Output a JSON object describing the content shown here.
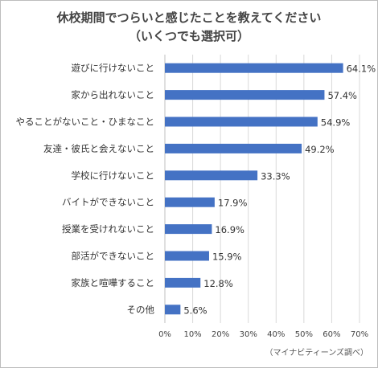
{
  "title": "休校期間でつらいと感じたことを教えてください",
  "subtitle": "（いくつでも選択可）",
  "source": "（マイナビティーンズ調べ）",
  "chart_data": {
    "type": "bar",
    "orientation": "horizontal",
    "categories": [
      "遊びに行けないこと",
      "家から出れないこと",
      "やることがないこと・ひまなこと",
      "友達・彼氏と会えないこと",
      "学校に行けないこと",
      "バイトができないこと",
      "授業を受けれないこと",
      "部活ができないこと",
      "家族と喧嘩すること",
      "その他"
    ],
    "values": [
      64.1,
      57.4,
      54.9,
      49.2,
      33.3,
      17.9,
      16.9,
      15.9,
      12.8,
      5.6
    ],
    "value_labels": [
      "64.1%",
      "57.4%",
      "54.9%",
      "49.2%",
      "33.3%",
      "17.9%",
      "16.9%",
      "15.9%",
      "12.8%",
      "5.6%"
    ],
    "xlim": [
      0,
      70
    ],
    "xticks": [
      0,
      10,
      20,
      30,
      40,
      50,
      60,
      70
    ],
    "xtick_labels": [
      "0%",
      "10%",
      "20%",
      "30%",
      "40%",
      "50%",
      "60%",
      "70%"
    ],
    "grid": true,
    "bar_color": "#4472c4",
    "grid_color": "#d9d9d9"
  }
}
